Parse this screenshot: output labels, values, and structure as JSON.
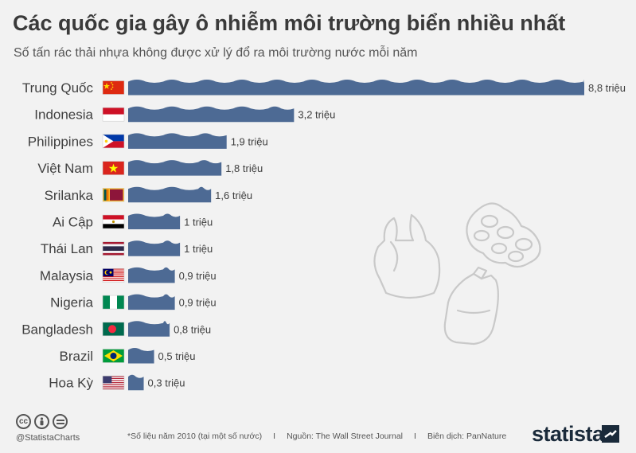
{
  "title": "Các quốc gia gây ô nhiễm môi trường biển nhiều nhất",
  "subtitle": "Số tấn rác thải nhựa không được xử lý đổ ra môi trường nước mỗi năm",
  "chart_data": {
    "type": "bar",
    "orientation": "horizontal",
    "categories": [
      "Trung Quốc",
      "Indonesia",
      "Philippines",
      "Việt Nam",
      "Srilanka",
      "Ai Cập",
      "Thái Lan",
      "Malaysia",
      "Nigeria",
      "Bangladesh",
      "Brazil",
      "Hoa Kỳ"
    ],
    "values": [
      8.8,
      3.2,
      1.9,
      1.8,
      1.6,
      1.0,
      1.0,
      0.9,
      0.9,
      0.8,
      0.5,
      0.3
    ],
    "value_labels": [
      "8,8 triệu",
      "3,2 triệu",
      "1,9 triệu",
      "1,8 triệu",
      "1,6 triệu",
      "1 triệu",
      "1 triệu",
      "0,9 triệu",
      "0,9 triệu",
      "0,8 triệu",
      "0,5 triệu",
      "0,3 triệu"
    ],
    "flags": [
      "china-flag",
      "indonesia-flag",
      "philippines-flag",
      "vietnam-flag",
      "srilanka-flag",
      "egypt-flag",
      "thailand-flag",
      "malaysia-flag",
      "nigeria-flag",
      "bangladesh-flag",
      "brazil-flag",
      "usa-flag"
    ],
    "bar_color": "#4d6a94",
    "xlim": [
      0,
      8.8
    ],
    "grid": false
  },
  "footer": {
    "handle": "@StatistaCharts",
    "note": "*Số liệu năm 2010 (tại một số nước)",
    "sep1": "I",
    "source": "Nguồn: The Wall Street Journal",
    "sep2": "I",
    "translation": "Biên dịch: PanNature",
    "brand": "statista",
    "cc_icons": [
      "cc",
      "by",
      "nd"
    ]
  }
}
